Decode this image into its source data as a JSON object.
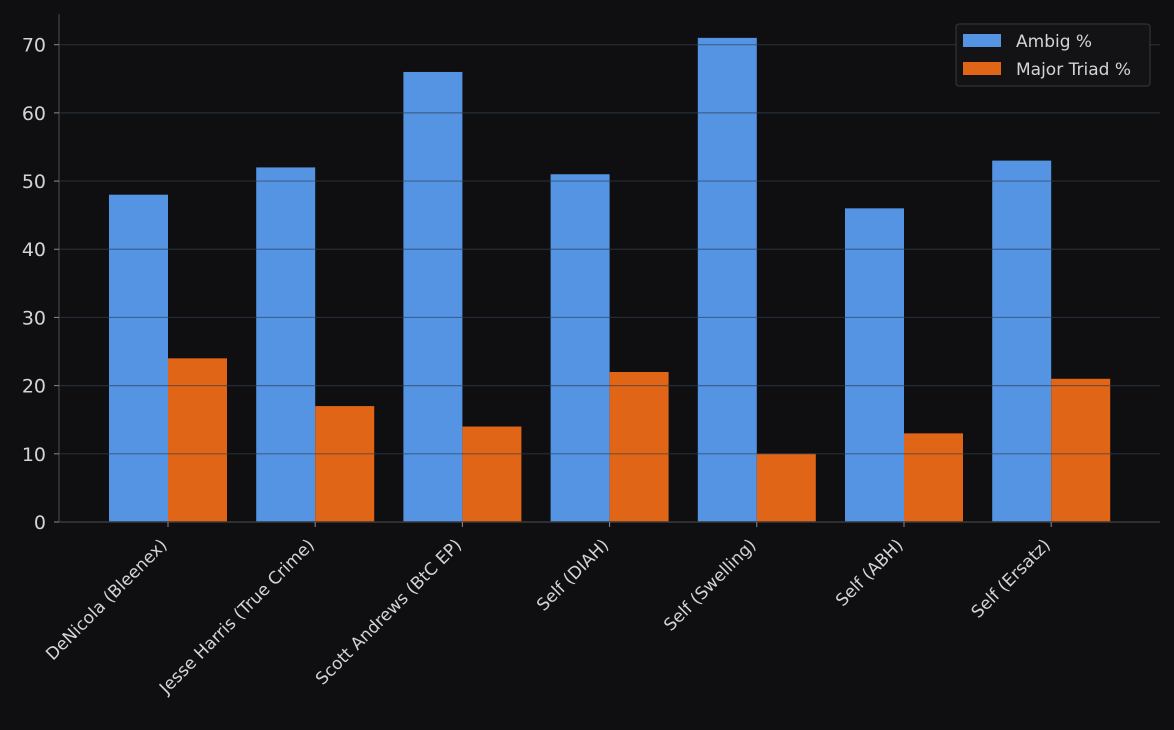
{
  "chart_data": {
    "type": "bar",
    "categories": [
      "DeNicola (Bleenex)",
      "Jesse Harris (True Crime)",
      "Scott Andrews (BtC EP)",
      "Self (DIAH)",
      "Self (Swelling)",
      "Self (ABH)",
      "Self (Ersatz)"
    ],
    "series": [
      {
        "name": "Ambig %",
        "values": [
          48,
          52,
          66,
          51,
          71,
          46,
          53
        ],
        "color": "#5593e3"
      },
      {
        "name": "Major Triad %",
        "values": [
          24,
          17,
          14,
          22,
          10,
          13,
          21
        ],
        "color": "#e06516"
      }
    ],
    "title": "",
    "xlabel": "",
    "ylabel": "",
    "ylim": [
      0,
      74.5
    ],
    "yticks": [
      0,
      10,
      20,
      30,
      40,
      50,
      60,
      70
    ],
    "grid": true,
    "legend_position": "top-right",
    "background": "#0f0f11",
    "axis_color": "#3a3a3d",
    "text_color": "#d4d4d4"
  }
}
